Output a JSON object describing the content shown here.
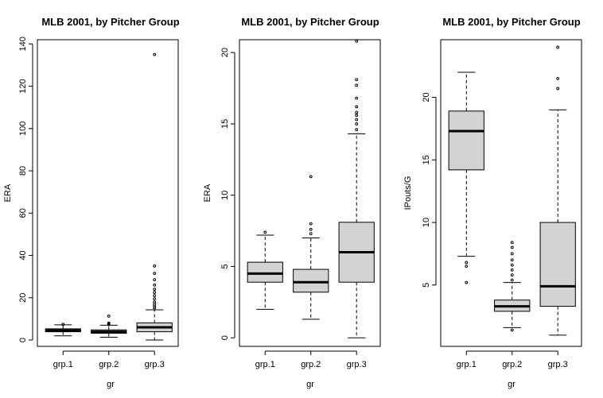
{
  "colors": {
    "box_fill": "#d3d3d3",
    "stroke": "#000000",
    "background": "#ffffff"
  },
  "chart_data": [
    {
      "type": "box",
      "title": "MLB 2001, by Pitcher Group",
      "xlabel": "gr",
      "ylabel": "ERA",
      "categories": [
        "grp.1",
        "grp.2",
        "grp.3"
      ],
      "ylim": [
        -3,
        142
      ],
      "yticks": [
        0,
        20,
        40,
        60,
        80,
        100,
        120,
        140
      ],
      "boxes": [
        {
          "whisker_low": 2.0,
          "q1": 3.9,
          "median": 4.5,
          "q3": 5.3,
          "whisker_high": 7.2,
          "outliers": [
            7.4
          ]
        },
        {
          "whisker_low": 1.3,
          "q1": 3.2,
          "median": 3.9,
          "q3": 4.8,
          "whisker_high": 7.0,
          "outliers": [
            7.3,
            7.6,
            8.0,
            11.3
          ]
        },
        {
          "whisker_low": 0.0,
          "q1": 3.9,
          "median": 6.0,
          "q3": 8.1,
          "whisker_high": 14.3,
          "outliers": [
            15.2,
            16.0,
            17.0,
            18.0,
            19.5,
            21.0,
            22.5,
            24.0,
            26.0,
            28.5,
            31.5,
            35.0,
            135.0
          ]
        }
      ]
    },
    {
      "type": "box",
      "title": "MLB 2001, by Pitcher Group",
      "xlabel": "gr",
      "ylabel": "ERA",
      "categories": [
        "grp.1",
        "grp.2",
        "grp.3"
      ],
      "ylim": [
        -0.6,
        20.9
      ],
      "yticks": [
        0,
        5,
        10,
        15,
        20
      ],
      "boxes": [
        {
          "whisker_low": 2.0,
          "q1": 3.9,
          "median": 4.5,
          "q3": 5.3,
          "whisker_high": 7.2,
          "outliers": [
            7.4
          ]
        },
        {
          "whisker_low": 1.3,
          "q1": 3.2,
          "median": 3.9,
          "q3": 4.8,
          "whisker_high": 7.0,
          "outliers": [
            7.3,
            7.6,
            8.0,
            11.3
          ]
        },
        {
          "whisker_low": 0.0,
          "q1": 3.9,
          "median": 6.0,
          "q3": 8.1,
          "whisker_high": 14.3,
          "outliers": [
            14.6,
            15.0,
            15.3,
            15.6,
            15.8,
            16.2,
            16.8,
            17.7,
            18.1,
            20.8
          ]
        }
      ]
    },
    {
      "type": "box",
      "title": "MLB 2001, by Pitcher Group",
      "xlabel": "gr",
      "ylabel": "IPouts/G",
      "categories": [
        "grp.1",
        "grp.2",
        "grp.3"
      ],
      "ylim": [
        0.1,
        24.6
      ],
      "yticks": [
        5,
        10,
        15,
        20
      ],
      "boxes": [
        {
          "whisker_low": 7.3,
          "q1": 14.2,
          "median": 17.3,
          "q3": 18.9,
          "whisker_high": 22.0,
          "outliers": [
            6.8,
            6.5,
            5.2
          ]
        },
        {
          "whisker_low": 1.6,
          "q1": 2.9,
          "median": 3.3,
          "q3": 3.8,
          "whisker_high": 5.2,
          "outliers": [
            1.4,
            5.4,
            5.8,
            6.2,
            6.6,
            7.0,
            7.5,
            8.0,
            8.4
          ]
        },
        {
          "whisker_low": 1.0,
          "q1": 3.3,
          "median": 4.9,
          "q3": 10.0,
          "whisker_high": 19.0,
          "outliers": [
            20.7,
            21.5,
            24.0
          ]
        }
      ]
    }
  ]
}
